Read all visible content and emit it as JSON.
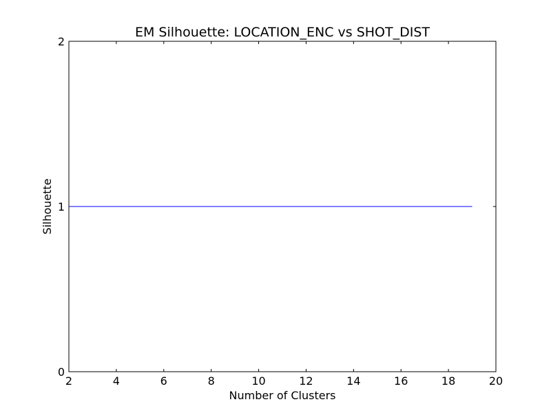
{
  "chart_data": {
    "type": "line",
    "title": "EM Silhouette: LOCATION_ENC vs SHOT_DIST",
    "xlabel": "Number of Clusters",
    "ylabel": "Silhouette",
    "xlim": [
      2,
      20
    ],
    "ylim": [
      0,
      2
    ],
    "xticks": [
      2,
      4,
      6,
      8,
      10,
      12,
      14,
      16,
      18,
      20
    ],
    "yticks": [
      0,
      1,
      2
    ],
    "grid": false,
    "series": [
      {
        "color": "#0000ff",
        "x": [
          2,
          3,
          4,
          5,
          6,
          7,
          8,
          9,
          10,
          11,
          12,
          13,
          14,
          15,
          16,
          17,
          18,
          19
        ],
        "y": [
          1,
          1,
          1,
          1,
          1,
          1,
          1,
          1,
          1,
          1,
          1,
          1,
          1,
          1,
          1,
          1,
          1,
          1
        ]
      }
    ]
  }
}
